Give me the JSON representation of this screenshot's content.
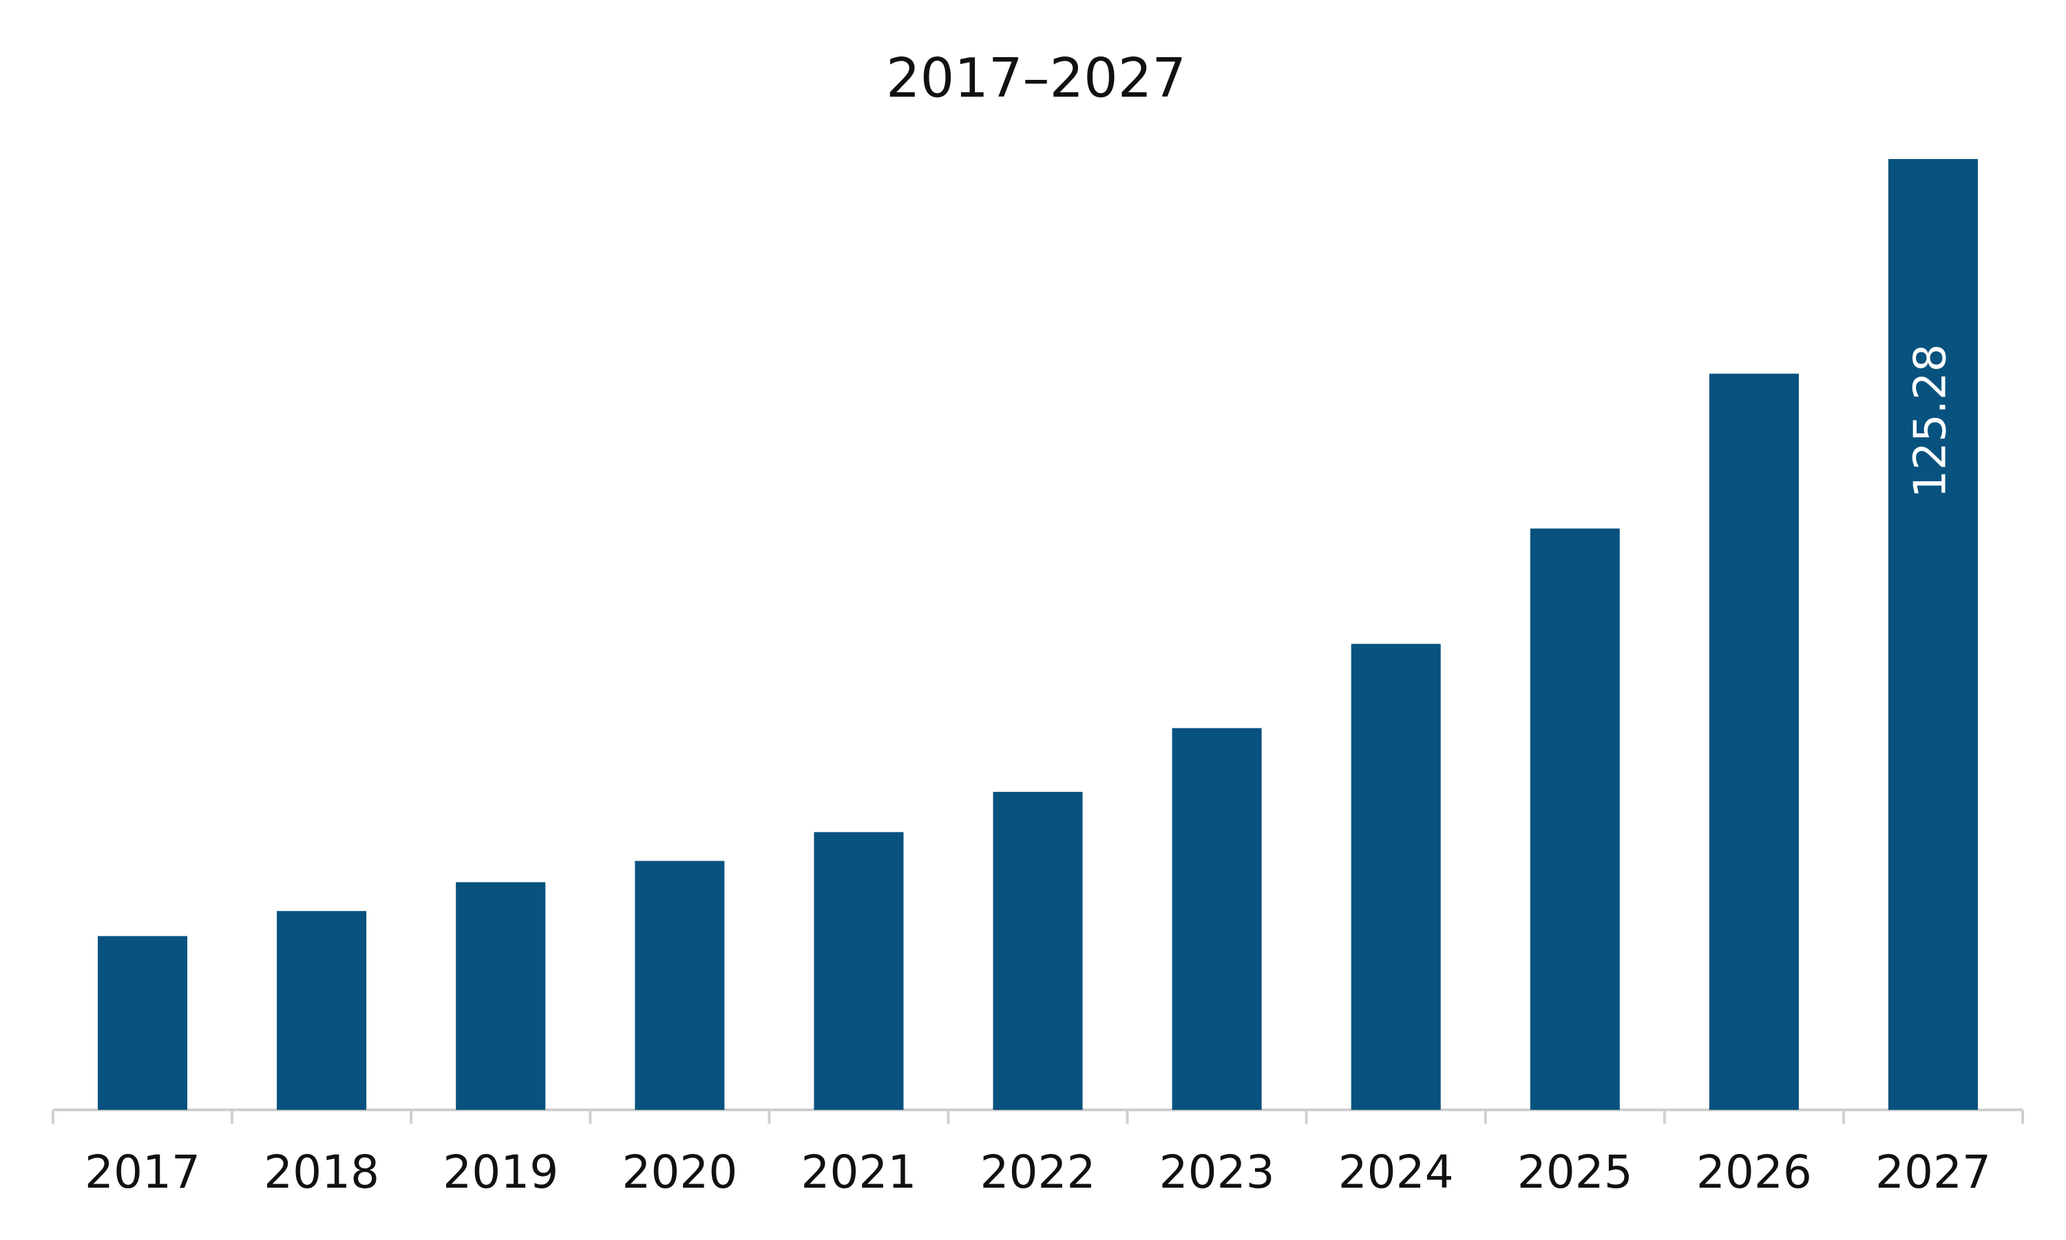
{
  "chart_data": {
    "type": "bar",
    "title": "2017–2027",
    "categories": [
      "2017",
      "2018",
      "2019",
      "2020",
      "2021",
      "2022",
      "2023",
      "2024",
      "2025",
      "2026",
      "2027"
    ],
    "values": [
      22.9,
      26.2,
      30.0,
      32.8,
      36.6,
      41.9,
      50.3,
      61.4,
      76.6,
      97.0,
      125.28
    ],
    "value_labels": [
      null,
      null,
      null,
      null,
      null,
      null,
      null,
      null,
      null,
      null,
      "125.28"
    ],
    "color": "#08527f"
  }
}
